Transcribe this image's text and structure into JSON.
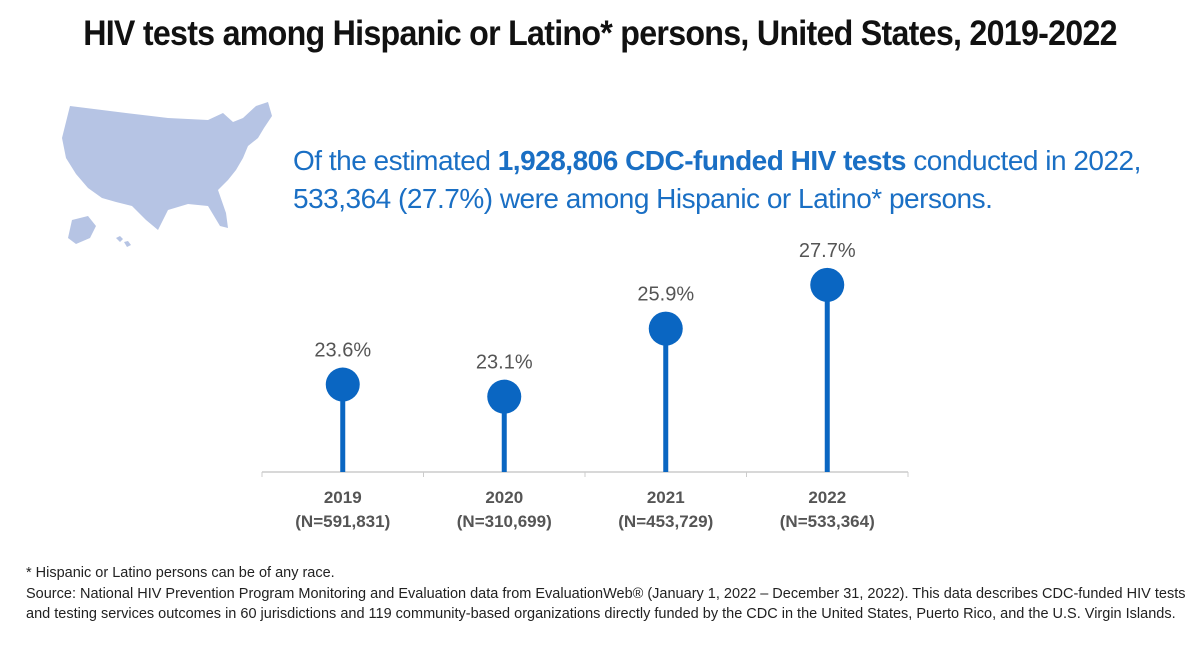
{
  "title": "HIV tests among Hispanic or Latino* persons, United States, 2019-2022",
  "headline": {
    "pre": "Of the estimated ",
    "bold": "1,928,806 CDC-funded HIV tests",
    "post": " conducted in 2022,",
    "line2": "533,364 (27.7%) were among Hispanic or Latino* persons."
  },
  "colors": {
    "accent": "#0a66c2",
    "map": "#b6c4e4",
    "axis": "#cccccc",
    "label": "#555555"
  },
  "chart_data": {
    "type": "lollipop",
    "categories": [
      "2019",
      "2020",
      "2021",
      "2022"
    ],
    "sublabels": [
      "(N=591,831)",
      "(N=310,699)",
      "(N=453,729)",
      "(N=533,364)"
    ],
    "values": [
      23.6,
      23.1,
      25.9,
      27.7
    ],
    "data_labels": [
      "23.6%",
      "23.1%",
      "25.9%",
      "27.7%"
    ],
    "ylim": [
      20,
      30
    ],
    "grid": false
  },
  "footnote": {
    "note": "* Hispanic or Latino persons can be of any race.",
    "source": "Source: National HIV Prevention Program Monitoring and Evaluation data from EvaluationWeb® (January 1, 2022 – December 31, 2022). This data describes CDC-funded HIV tests and testing services outcomes in 60 jurisdictions and 119 community-based organizations directly funded by the CDC in the United States, Puerto Rico, and the U.S. Virgin Islands."
  }
}
